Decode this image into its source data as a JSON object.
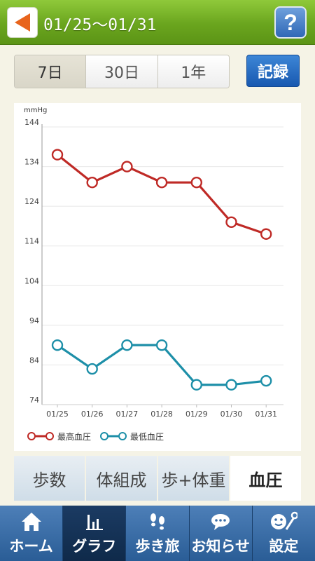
{
  "header": {
    "title": "01/25～01/31",
    "help_label": "?"
  },
  "period_tabs": [
    {
      "label": "7日",
      "active": true
    },
    {
      "label": "30日",
      "active": false
    },
    {
      "label": "1年",
      "active": false
    }
  ],
  "record_button": "記録",
  "chart_data": {
    "type": "line",
    "ylabel": "mmHg",
    "yticks": [
      144,
      134,
      124,
      114,
      104,
      94,
      84,
      74
    ],
    "ylim": [
      74,
      144
    ],
    "categories": [
      "01/25",
      "01/26",
      "01/27",
      "01/28",
      "01/29",
      "01/30",
      "01/31"
    ],
    "series": [
      {
        "name": "最高血圧",
        "color": "#bf2a26",
        "values": [
          137,
          130,
          134,
          130,
          130,
          120,
          117
        ]
      },
      {
        "name": "最低血圧",
        "color": "#1d8fa8",
        "values": [
          89,
          83,
          89,
          89,
          79,
          79,
          80
        ]
      }
    ],
    "grid": true,
    "legend": "bottom-left"
  },
  "category_tabs": [
    {
      "label": "歩数",
      "active": false
    },
    {
      "label": "体組成",
      "active": false
    },
    {
      "label": "歩+体重",
      "active": false
    },
    {
      "label": "血圧",
      "active": true
    }
  ],
  "bottom_nav": [
    {
      "label": "ホーム",
      "icon": "home-icon",
      "active": false
    },
    {
      "label": "グラフ",
      "icon": "bar-chart-icon",
      "active": true
    },
    {
      "label": "歩き旅",
      "icon": "footprints-icon",
      "active": false
    },
    {
      "label": "お知らせ",
      "icon": "speech-bubble-icon",
      "active": false
    },
    {
      "label": "設定",
      "icon": "settings-icon",
      "active": false
    }
  ]
}
